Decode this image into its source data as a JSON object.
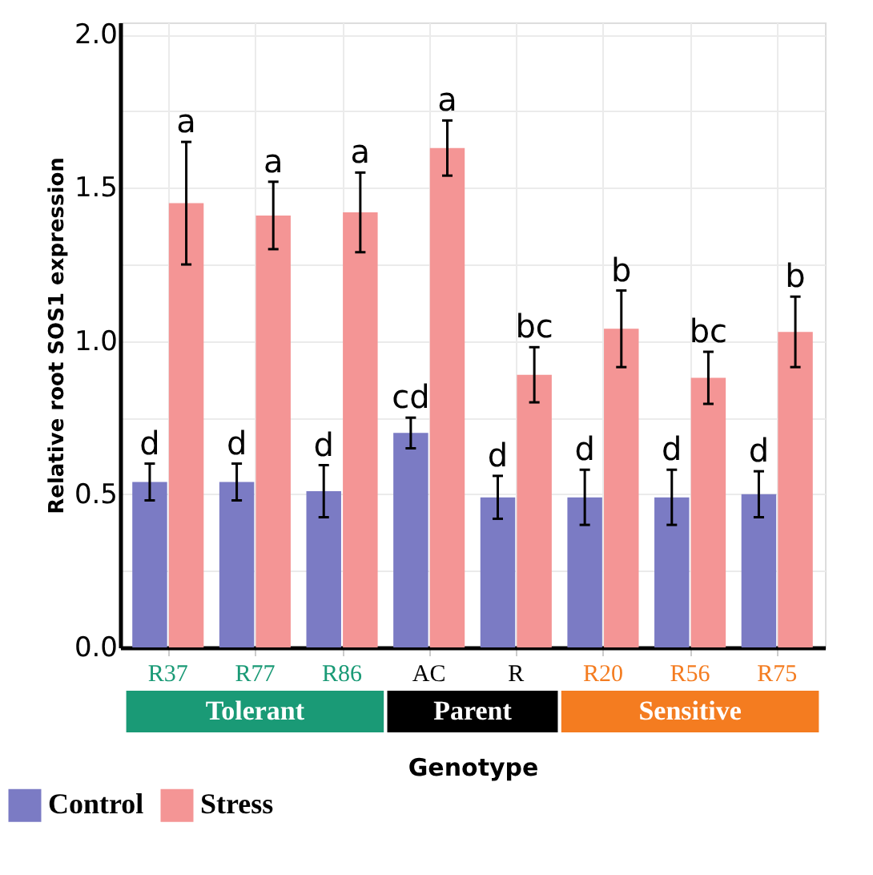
{
  "chart_data": {
    "type": "bar",
    "ylabel": "Relative root SOS1 expression",
    "xlabel": "Genotype",
    "categories": [
      "R37",
      "R77",
      "R86",
      "AC",
      "R",
      "R20",
      "R56",
      "R75"
    ],
    "series": [
      {
        "name": "Control",
        "color": "#7b7bc4",
        "values": [
          0.54,
          0.54,
          0.51,
          0.7,
          0.49,
          0.49,
          0.49,
          0.5
        ],
        "errors": [
          0.06,
          0.06,
          0.085,
          0.05,
          0.07,
          0.09,
          0.09,
          0.075
        ]
      },
      {
        "name": "Stress",
        "color": "#f49595",
        "values": [
          1.45,
          1.41,
          1.42,
          1.63,
          0.89,
          1.04,
          0.88,
          1.03
        ],
        "errors": [
          0.2,
          0.11,
          0.13,
          0.09,
          0.09,
          0.125,
          0.085,
          0.115
        ]
      }
    ],
    "ylim": [
      0,
      2.04
    ],
    "yticks": [
      {
        "value": 0,
        "label": "0.0"
      },
      {
        "value": 0.25,
        "label": null
      },
      {
        "value": 0.5,
        "label": "0.5"
      },
      {
        "value": 0.75,
        "label": null
      },
      {
        "value": 1.0,
        "label": "1.0"
      },
      {
        "value": 1.25,
        "label": null
      },
      {
        "value": 1.5,
        "label": "1.5"
      },
      {
        "value": 1.75,
        "label": null
      },
      {
        "value": 2.0,
        "label": "2.0"
      }
    ],
    "grid": true,
    "legend": "bottom left",
    "annotations": [
      "d",
      "a",
      "d",
      "a",
      "d",
      "a",
      "cd",
      "a",
      "d",
      "bc",
      "d",
      "b",
      "d",
      "bc",
      "d",
      "b",
      "Tolerant",
      "Parent",
      "Sensitive"
    ]
  }
}
